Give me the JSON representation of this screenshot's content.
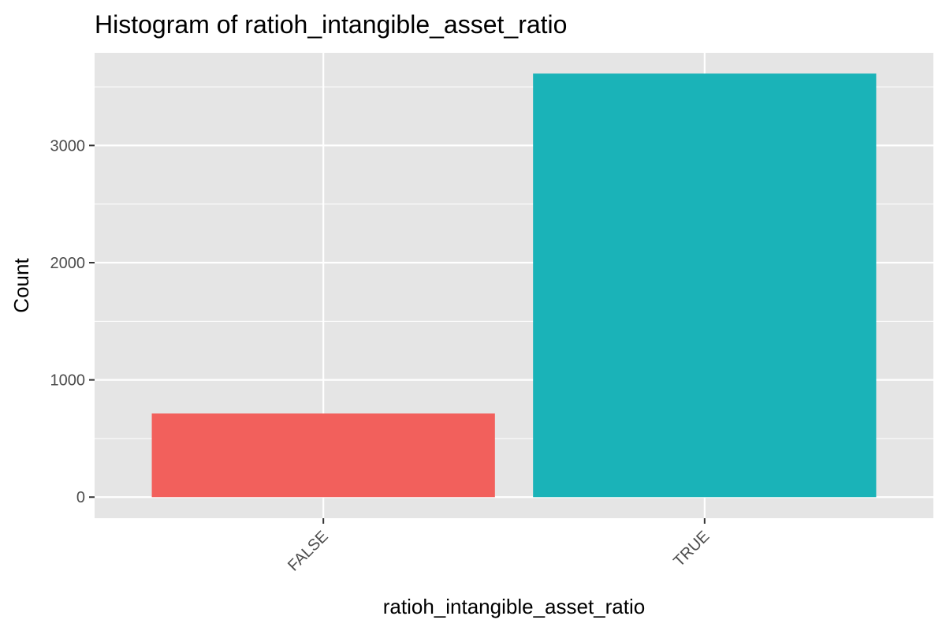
{
  "chart_data": {
    "type": "bar",
    "title": "Histogram of ratioh_intangible_asset_ratio",
    "xlabel": "ratioh_intangible_asset_ratio",
    "ylabel": "Count",
    "categories": [
      "FALSE",
      "TRUE"
    ],
    "values": [
      713,
      3613
    ],
    "colors": [
      "#F2605C",
      "#1AB3B8"
    ],
    "ylim": [
      -180,
      3790
    ],
    "yticks": [
      0,
      1000,
      2000,
      3000
    ],
    "ytick_labels": [
      "0",
      "1000",
      "2000",
      "3000"
    ],
    "xtick_rotation_deg": -45,
    "grid": true,
    "legend": "none",
    "panel_background": "#E5E5E5",
    "grid_color": "#FFFFFF"
  }
}
